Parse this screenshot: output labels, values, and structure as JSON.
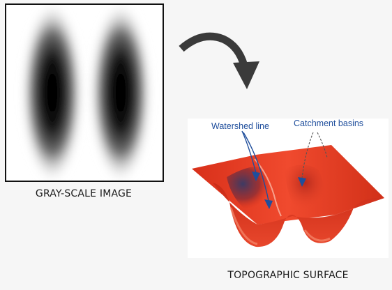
{
  "left_panel": {
    "caption": "GRAY-SCALE IMAGE"
  },
  "right_panel": {
    "caption": "TOPOGRAPHIC SURFACE",
    "annotations": {
      "watershed_line": "Watershed line",
      "catchment_basins": "Catchment basins"
    }
  },
  "colors": {
    "background": "#f6f6f6",
    "surface_red": "#e53a22",
    "annotation_blue": "#1f4e9c",
    "arrow_dark": "#3a3a3a"
  }
}
